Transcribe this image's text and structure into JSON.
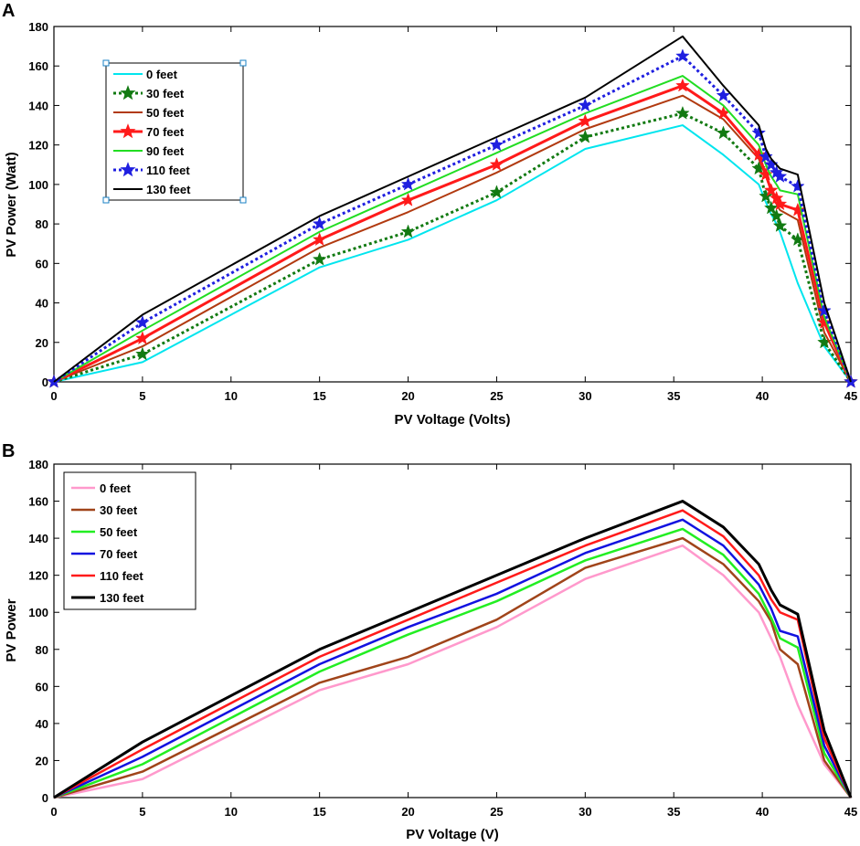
{
  "chart_data": [
    {
      "panel_label": "A",
      "type": "line",
      "xlabel": "PV Voltage (Volts)",
      "ylabel": "PV Power (Watt)",
      "xlim": [
        0,
        45
      ],
      "ylim": [
        0,
        180
      ],
      "xticks": [
        0,
        5,
        10,
        15,
        20,
        25,
        30,
        35,
        40,
        45
      ],
      "yticks": [
        0,
        20,
        40,
        60,
        80,
        100,
        120,
        140,
        160,
        180
      ],
      "legend_position": "top-left",
      "x": [
        0,
        5,
        15,
        20,
        25,
        30,
        35.5,
        37.8,
        39.8,
        40.2,
        40.5,
        40.8,
        41,
        42,
        43.5,
        45
      ],
      "series": [
        {
          "name": "0 feet",
          "color": "#00e5ee",
          "width": 2,
          "dash": "",
          "marker": "",
          "values": [
            0,
            10,
            58,
            72,
            92,
            118,
            130,
            115,
            100,
            91,
            85,
            80,
            76,
            50,
            18,
            0
          ]
        },
        {
          "name": "30 feet",
          "color": "#127a12",
          "width": 3,
          "dash": "3 3",
          "marker": "star",
          "values": [
            0,
            14,
            62,
            76,
            96,
            124,
            136,
            126,
            108,
            94,
            88,
            84,
            79,
            72,
            20,
            0
          ]
        },
        {
          "name": "50 feet",
          "color": "#b13a10",
          "width": 2,
          "dash": "",
          "marker": "",
          "values": [
            0,
            18,
            68,
            86,
            106,
            128,
            145,
            133,
            113,
            104,
            97,
            90,
            87,
            82,
            25,
            0
          ]
        },
        {
          "name": "70 feet",
          "color": "#ff1a1a",
          "width": 3,
          "dash": "",
          "marker": "star",
          "values": [
            0,
            22,
            72,
            92,
            110,
            132,
            150,
            136,
            115,
            105,
            97,
            93,
            90,
            87,
            30,
            0
          ]
        },
        {
          "name": "90 feet",
          "color": "#22dd22",
          "width": 2,
          "dash": "",
          "marker": "",
          "values": [
            0,
            26,
            76,
            96,
            116,
            136,
            155,
            140,
            120,
            110,
            104,
            100,
            97,
            95,
            33,
            0
          ]
        },
        {
          "name": "110 feet",
          "color": "#1f1fe0",
          "width": 3,
          "dash": "3 3",
          "marker": "star",
          "values": [
            0,
            30,
            80,
            100,
            120,
            140,
            165,
            145,
            126,
            114,
            110,
            106,
            104,
            99,
            36,
            0
          ]
        },
        {
          "name": "130 feet",
          "color": "#000000",
          "width": 2,
          "dash": "",
          "marker": "",
          "values": [
            0,
            34,
            84,
            104,
            124,
            144,
            175,
            150,
            130,
            118,
            113,
            110,
            108,
            105,
            40,
            0
          ]
        }
      ]
    },
    {
      "panel_label": "B",
      "type": "line",
      "xlabel": "PV Voltage (V)",
      "ylabel": "PV Power",
      "xlim": [
        0,
        45
      ],
      "ylim": [
        0,
        180
      ],
      "xticks": [
        0,
        5,
        10,
        15,
        20,
        25,
        30,
        35,
        40,
        45
      ],
      "yticks": [
        0,
        20,
        40,
        60,
        80,
        100,
        120,
        140,
        160,
        180
      ],
      "legend_position": "top-left",
      "x": [
        0,
        5,
        15,
        20,
        25,
        30,
        35.5,
        37.8,
        39.8,
        40.5,
        41,
        42,
        43.5,
        45
      ],
      "series": [
        {
          "name": "0 feet",
          "color": "#ff99cc",
          "width": 2.5,
          "dash": "",
          "marker": "",
          "values": [
            0,
            10,
            58,
            72,
            92,
            118,
            136,
            120,
            100,
            86,
            76,
            50,
            18,
            0
          ]
        },
        {
          "name": "30 feet",
          "color": "#a0441a",
          "width": 2.5,
          "dash": "",
          "marker": "",
          "values": [
            0,
            14,
            62,
            76,
            96,
            124,
            140,
            126,
            106,
            95,
            80,
            72,
            20,
            0
          ]
        },
        {
          "name": "50 feet",
          "color": "#22ee22",
          "width": 2.5,
          "dash": "",
          "marker": "",
          "values": [
            0,
            18,
            68,
            88,
            106,
            128,
            145,
            131,
            110,
            97,
            86,
            81,
            24,
            0
          ]
        },
        {
          "name": "70 feet",
          "color": "#1212e0",
          "width": 2.5,
          "dash": "",
          "marker": "",
          "values": [
            0,
            22,
            72,
            92,
            110,
            132,
            150,
            136,
            115,
            102,
            90,
            87,
            28,
            0
          ]
        },
        {
          "name": "110 feet",
          "color": "#ff1a1a",
          "width": 2.5,
          "dash": "",
          "marker": "",
          "values": [
            0,
            26,
            76,
            96,
            116,
            136,
            155,
            141,
            120,
            107,
            100,
            96,
            32,
            0
          ]
        },
        {
          "name": "130 feet",
          "color": "#000000",
          "width": 3,
          "dash": "",
          "marker": "",
          "values": [
            0,
            30,
            80,
            100,
            120,
            140,
            160,
            146,
            126,
            112,
            104,
            99,
            36,
            0
          ]
        }
      ]
    }
  ]
}
